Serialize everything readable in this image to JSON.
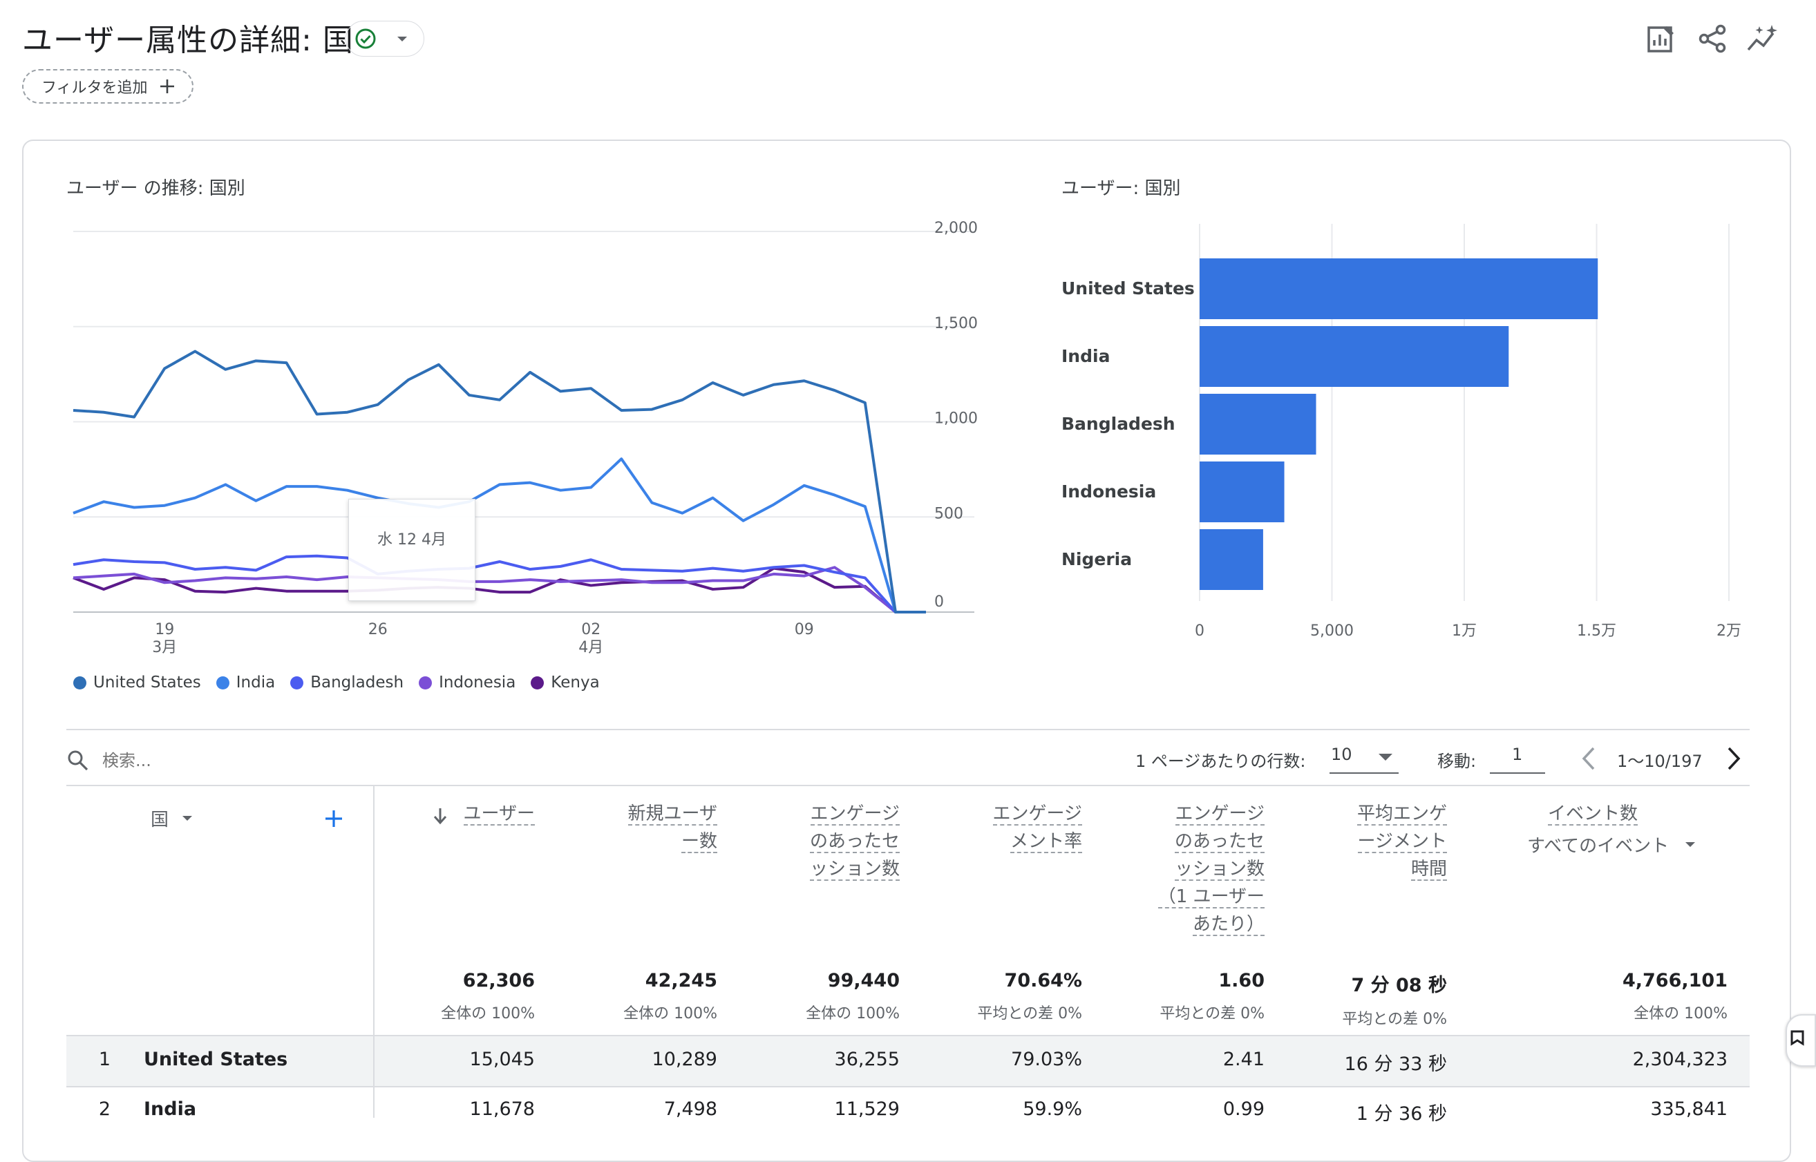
{
  "header": {
    "title": "ユーザー属性の詳細: 国",
    "add_filter_label": "フィルタを追加",
    "icons": [
      "customize-report-icon",
      "share-icon",
      "insights-icon"
    ]
  },
  "line_chart": {
    "title": "ユーザー の推移: 国別",
    "tooltip": "水 12 4月"
  },
  "bar_chart": {
    "title": "ユーザー: 国別"
  },
  "chart_data": [
    {
      "type": "line",
      "title": "ユーザー の推移: 国別",
      "x": [
        "3/16",
        "3/17",
        "3/18",
        "3/19",
        "3/20",
        "3/21",
        "3/22",
        "3/23",
        "3/24",
        "3/25",
        "3/26",
        "3/27",
        "3/28",
        "3/29",
        "3/30",
        "3/31",
        "4/1",
        "4/2",
        "4/3",
        "4/4",
        "4/5",
        "4/6",
        "4/7",
        "4/8",
        "4/9",
        "4/10",
        "4/11",
        "4/12",
        "4/13"
      ],
      "x_tick_labels": [
        {
          "date": "3/19",
          "label": "19",
          "sublabel": "3月"
        },
        {
          "date": "3/26",
          "label": "26",
          "sublabel": ""
        },
        {
          "date": "4/2",
          "label": "02",
          "sublabel": "4月"
        },
        {
          "date": "4/9",
          "label": "09",
          "sublabel": ""
        }
      ],
      "y_ticks": [
        "0",
        "500",
        "1,000",
        "1,500",
        "2,000"
      ],
      "ylim": [
        0,
        2000
      ],
      "grid": true,
      "legend_position": "bottom",
      "series": [
        {
          "name": "United States",
          "color": "#2e6fb6",
          "values": [
            1060,
            1050,
            1025,
            1280,
            1370,
            1275,
            1320,
            1310,
            1040,
            1050,
            1090,
            1220,
            1300,
            1140,
            1115,
            1260,
            1160,
            1175,
            1060,
            1065,
            1115,
            1205,
            1140,
            1195,
            1215,
            1165,
            1100,
            0,
            0
          ]
        },
        {
          "name": "India",
          "color": "#3b82e8",
          "values": [
            520,
            580,
            550,
            560,
            600,
            670,
            585,
            660,
            660,
            640,
            600,
            570,
            550,
            580,
            670,
            680,
            640,
            655,
            805,
            575,
            520,
            600,
            480,
            565,
            665,
            615,
            555,
            0,
            0
          ]
        },
        {
          "name": "Bangladesh",
          "color": "#4b5cf0",
          "values": [
            250,
            275,
            265,
            260,
            225,
            235,
            220,
            290,
            295,
            285,
            200,
            215,
            225,
            230,
            265,
            225,
            240,
            275,
            225,
            220,
            215,
            230,
            215,
            235,
            245,
            210,
            180,
            0,
            0
          ]
        },
        {
          "name": "Indonesia",
          "color": "#7b4fd6",
          "values": [
            180,
            190,
            200,
            155,
            165,
            180,
            175,
            185,
            170,
            185,
            180,
            175,
            170,
            160,
            160,
            170,
            160,
            165,
            170,
            155,
            155,
            165,
            165,
            200,
            190,
            235,
            130,
            0,
            0
          ]
        },
        {
          "name": "Kenya",
          "color": "#5b1a8a",
          "values": [
            180,
            120,
            180,
            170,
            110,
            105,
            125,
            110,
            110,
            110,
            115,
            125,
            130,
            125,
            105,
            105,
            170,
            140,
            155,
            160,
            165,
            120,
            130,
            230,
            210,
            130,
            135,
            0,
            0
          ]
        }
      ]
    },
    {
      "type": "bar",
      "orientation": "horizontal",
      "title": "ユーザー: 国別",
      "categories": [
        "United States",
        "India",
        "Bangladesh",
        "Indonesia",
        "Nigeria"
      ],
      "values": [
        15045,
        11678,
        4400,
        3200,
        2400
      ],
      "x_ticks": [
        "0",
        "5,000",
        "1万",
        "1.5万",
        "2万"
      ],
      "xlim": [
        0,
        20000
      ],
      "color": "#3574e0"
    }
  ],
  "table_toolbar": {
    "search_placeholder": "検索...",
    "rows_per_page_label": "1 ページあたりの行数:",
    "rows_per_page_value": "10",
    "goto_label": "移動:",
    "goto_value": "1",
    "range_label": "1〜10/197"
  },
  "table": {
    "dimension_header": "国",
    "columns": [
      {
        "label": "ユーザー",
        "sorted": true,
        "total": "62,306",
        "sub": "全体の 100%"
      },
      {
        "label": "新規ユーザー数",
        "total": "42,245",
        "sub": "全体の 100%"
      },
      {
        "label": "エンゲージのあったセッション数",
        "total": "99,440",
        "sub": "全体の 100%"
      },
      {
        "label": "エンゲージメント率",
        "total": "70.64%",
        "sub": "平均との差 0%"
      },
      {
        "label": "エンゲージのあったセッション数（1 ユーザーあたり）",
        "total": "1.60",
        "sub": "平均との差 0%"
      },
      {
        "label": "平均エンゲージメント時間",
        "total": "7 分 08 秒",
        "sub": "平均との差 0%"
      },
      {
        "label": "イベント数",
        "sublabel": "すべてのイベント",
        "total": "4,766,101",
        "sub": "全体の 100%"
      }
    ],
    "header_lines": {
      "c1": [
        "ユーザー"
      ],
      "c2": [
        "新規ユーザ",
        "ー数"
      ],
      "c3": [
        "エンゲージ",
        "のあったセ",
        "ッション数"
      ],
      "c4": [
        "エンゲージ",
        "メント率"
      ],
      "c5": [
        "エンゲージ",
        "のあったセ",
        "ッション数",
        "（1 ユーザー",
        "あたり）"
      ],
      "c6": [
        "平均エンゲ",
        "ージメント",
        "時間"
      ],
      "c7": [
        "イベント数"
      ],
      "c7_sub": "すべてのイベント"
    },
    "rows": [
      {
        "rank": "1",
        "country": "United States",
        "values": [
          "15,045",
          "10,289",
          "36,255",
          "79.03%",
          "2.41",
          "16 分 33 秒",
          "2,304,323"
        ]
      },
      {
        "rank": "2",
        "country": "India",
        "values": [
          "11,678",
          "7,498",
          "11,529",
          "59.9%",
          "0.99",
          "1 分 36 秒",
          "335,841"
        ]
      }
    ]
  }
}
